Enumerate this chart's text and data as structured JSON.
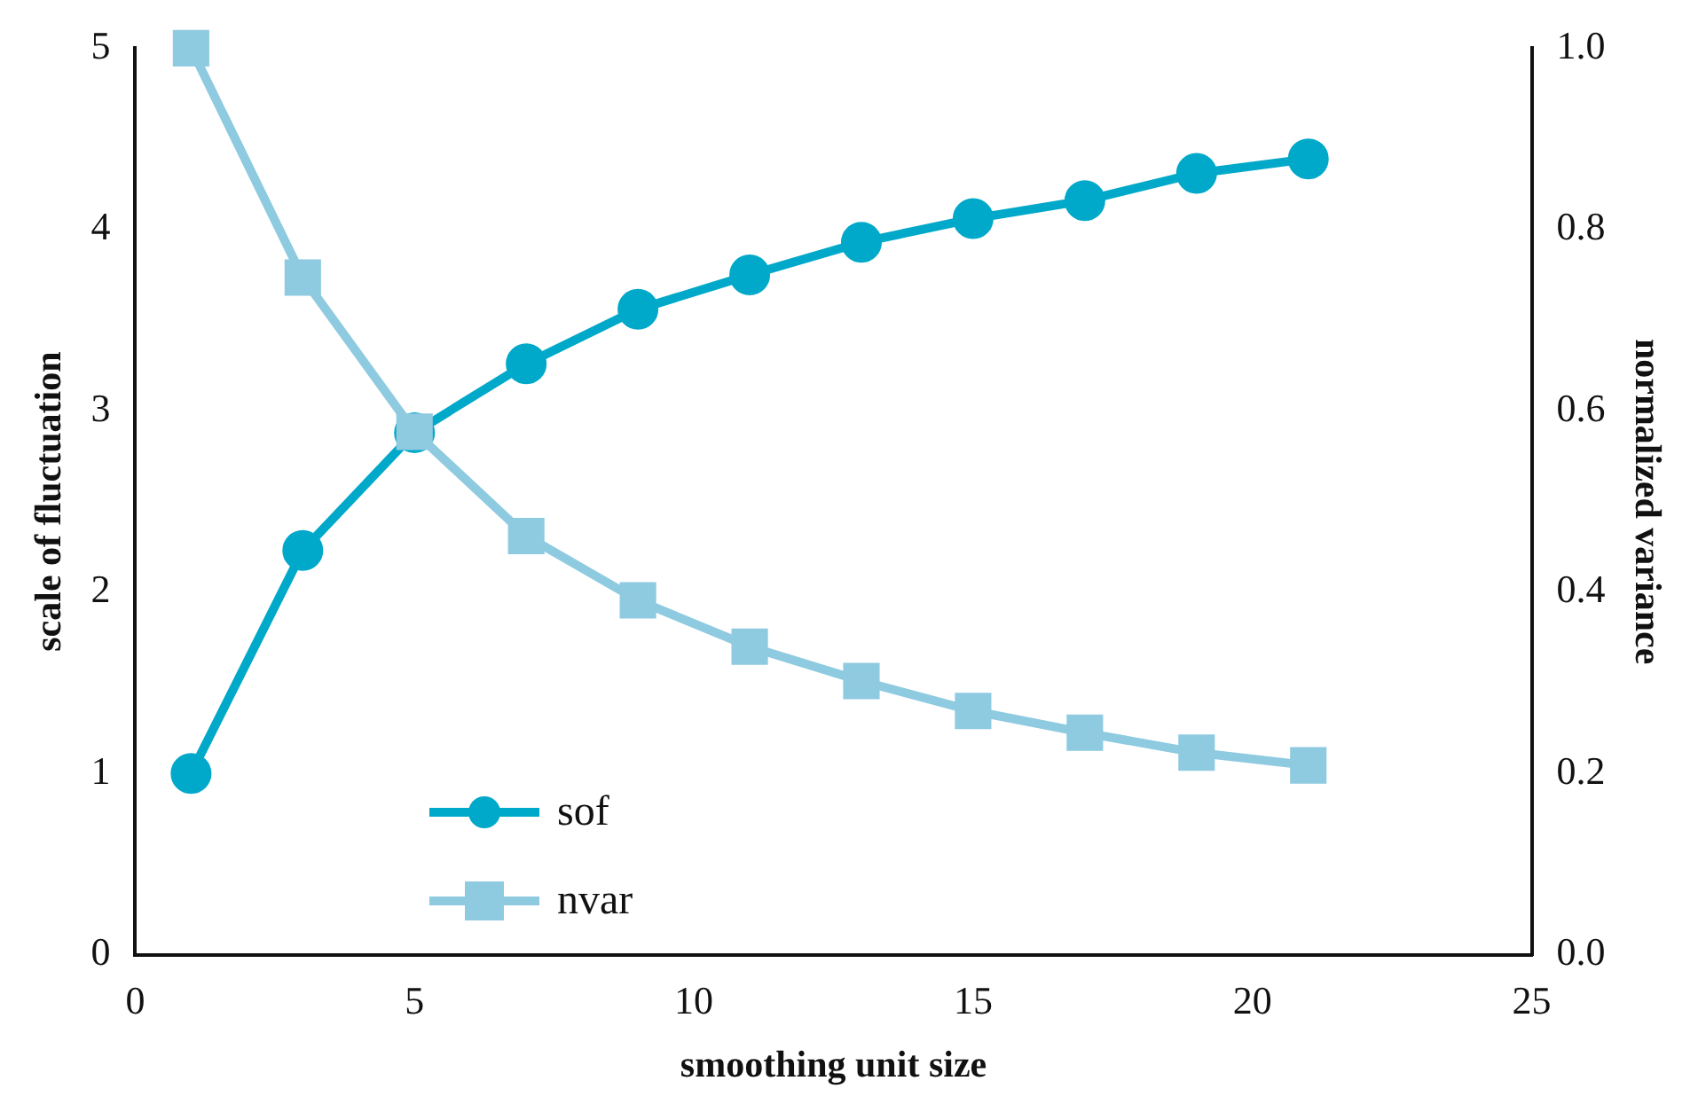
{
  "chart_data": {
    "type": "line",
    "xlabel": "smoothing unit size",
    "ylabel": "scale of fluctuation",
    "y2label": "normalized variance",
    "x": [
      1,
      3,
      5,
      7,
      9,
      11,
      13,
      15,
      17,
      19,
      21
    ],
    "series": [
      {
        "name": "sof",
        "color": "#00a9c9",
        "marker": "circle",
        "values": [
          1.0,
          2.23,
          2.88,
          3.26,
          3.56,
          3.75,
          3.93,
          4.06,
          4.16,
          4.31,
          4.39
        ]
      },
      {
        "name": "nvar",
        "color": "#8ecae0",
        "marker": "square",
        "axis": "y2",
        "values": [
          1.0,
          0.747,
          0.577,
          0.462,
          0.391,
          0.34,
          0.302,
          0.269,
          0.245,
          0.223,
          0.209
        ]
      }
    ],
    "xlim": [
      0,
      25
    ],
    "xticks": [
      0,
      5,
      10,
      15,
      20,
      25
    ],
    "ylim": [
      0,
      5
    ],
    "yticks": [
      0,
      1,
      2,
      3,
      4,
      5
    ],
    "y2lim": [
      0,
      1
    ],
    "y2ticks": [
      {
        "value": 0,
        "label": "0.0"
      },
      {
        "value": 0.2,
        "label": "0.2"
      },
      {
        "value": 0.4,
        "label": "0.4"
      },
      {
        "value": 0.6,
        "label": "0.6"
      },
      {
        "value": 0.8,
        "label": "0.8"
      },
      {
        "value": 1,
        "label": "1.0"
      }
    ],
    "grid": false,
    "legend": "bottom left",
    "line_style": "solid"
  }
}
